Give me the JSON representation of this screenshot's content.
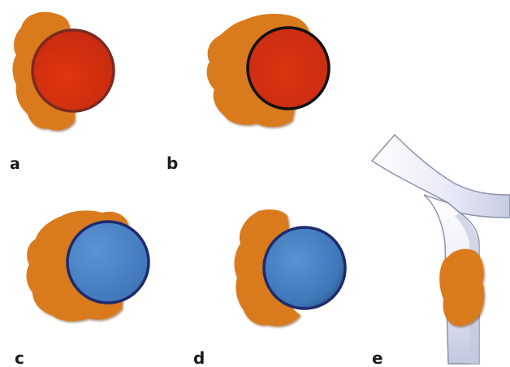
{
  "panels": [
    {
      "label": "a",
      "fill": "#d9330f",
      "stroke": "#7a2a20"
    },
    {
      "label": "b",
      "fill": "#d9330f",
      "stroke": "#111111"
    },
    {
      "label": "c",
      "fill": "#4b84c6",
      "stroke": "#1e2a6e"
    },
    {
      "label": "d",
      "fill": "#3f7cc0",
      "stroke": "#1e2a6e"
    },
    {
      "label": "e",
      "fill": "#e8eaf6",
      "stroke": "#9aa0b8"
    }
  ],
  "colors": {
    "tissue": "#d97a1c",
    "tissue_dark": "#a0520c",
    "vessel_outline": "#8c92ad"
  }
}
